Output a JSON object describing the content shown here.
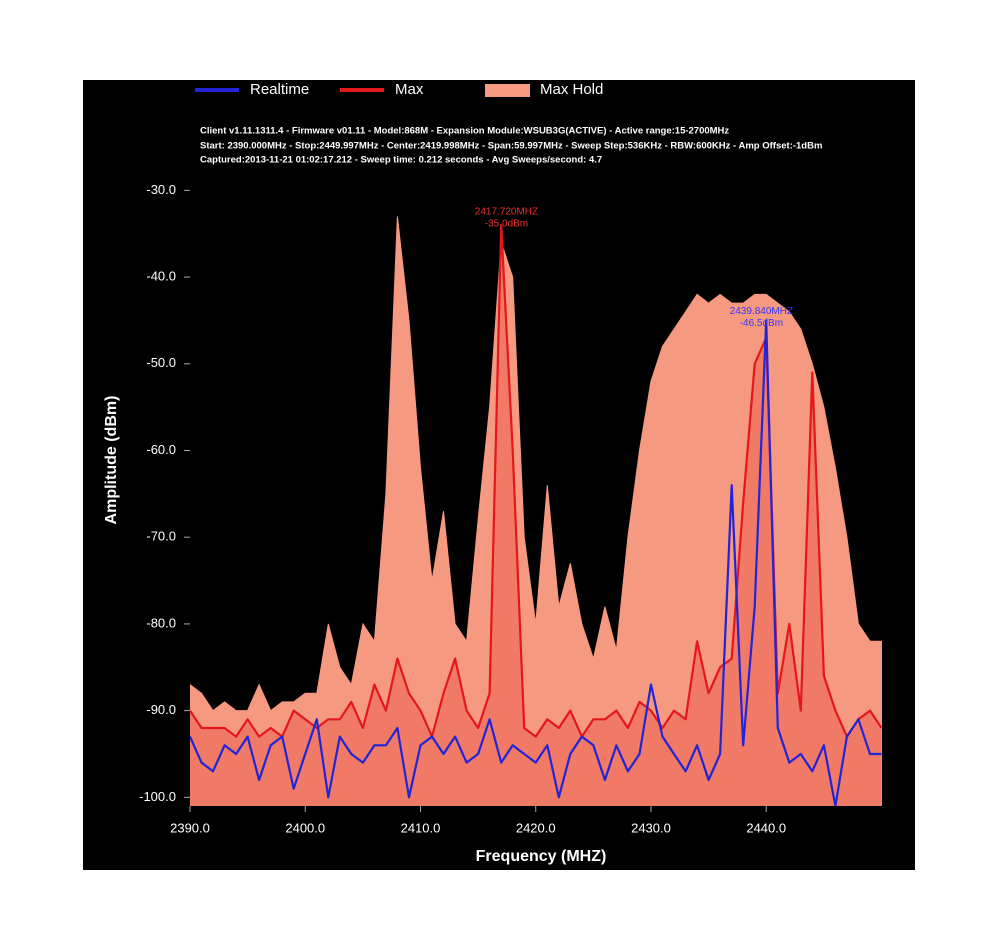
{
  "chart_data": {
    "type": "area",
    "info": [
      "Client v1.11.1311.4 - Firmware v01.11 - Model:868M - Expansion Module:WSUB3G(ACTIVE) - Active range:15-2700MHz",
      "Start: 2390.000MHz - Stop:2449.997MHz - Center:2419.998MHz - Span:59.997MHz - Sweep Step:536KHz - RBW:600KHz - Amp Offset:-1dBm",
      "Captured:2013-11-21 01:02:17.212 - Sweep time: 0.212 seconds - Avg Sweeps/second: 4.7"
    ],
    "x_label": "Frequency (MHZ)",
    "y_label": "Amplitude (dBm)",
    "xlim": [
      2390,
      2451
    ],
    "ylim": [
      -101,
      -22
    ],
    "xticks": [
      {
        "value": 2390,
        "label": "2390.0"
      },
      {
        "value": 2400,
        "label": "2400.0"
      },
      {
        "value": 2410,
        "label": "2410.0"
      },
      {
        "value": 2420,
        "label": "2420.0"
      },
      {
        "value": 2430,
        "label": "2430.0"
      },
      {
        "value": 2440,
        "label": "2440.0"
      }
    ],
    "yticks": [
      {
        "value": -100,
        "label": "-100.0"
      },
      {
        "value": -90,
        "label": "-90.0"
      },
      {
        "value": -80,
        "label": "-80.0"
      },
      {
        "value": -70,
        "label": "-70.0"
      },
      {
        "value": -60,
        "label": "-60.0"
      },
      {
        "value": -50,
        "label": "-50.0"
      },
      {
        "value": -40,
        "label": "-40.0"
      },
      {
        "value": -30,
        "label": "-30.0"
      }
    ],
    "grid": false,
    "x": [
      2390,
      2391,
      2392,
      2393,
      2394,
      2395,
      2396,
      2397,
      2398,
      2399,
      2400,
      2401,
      2402,
      2403,
      2404,
      2405,
      2406,
      2407,
      2408,
      2409,
      2410,
      2411,
      2412,
      2413,
      2414,
      2415,
      2416,
      2417,
      2418,
      2419,
      2420,
      2421,
      2422,
      2423,
      2424,
      2425,
      2426,
      2427,
      2428,
      2429,
      2430,
      2431,
      2432,
      2433,
      2434,
      2435,
      2436,
      2437,
      2438,
      2439,
      2440,
      2441,
      2442,
      2443,
      2444,
      2445,
      2446,
      2447,
      2448,
      2449,
      2450
    ],
    "series": [
      {
        "name": "Max Hold",
        "color": "#f59a80",
        "filled": true,
        "values": [
          -87,
          -88,
          -90,
          -89,
          -90,
          -90,
          -87,
          -90,
          -89,
          -89,
          -88,
          -88,
          -80,
          -85,
          -87,
          -80,
          -82,
          -65,
          -33,
          -45,
          -62,
          -75,
          -67,
          -80,
          -82,
          -68,
          -55,
          -36,
          -40,
          -70,
          -80,
          -64,
          -78,
          -73,
          -80,
          -84,
          -78,
          -83,
          -70,
          -60,
          -52,
          -48,
          -46,
          -44,
          -42,
          -43,
          -42,
          -43,
          -43,
          -42,
          -42,
          -43,
          -44,
          -46,
          -50,
          -55,
          -62,
          -70,
          -80,
          -82,
          -82
        ]
      },
      {
        "name": "Max",
        "color": "#e4171b",
        "filled": true,
        "values": [
          -90,
          -92,
          -92,
          -92,
          -93,
          -91,
          -93,
          -92,
          -93,
          -90,
          -91,
          -92,
          -91,
          -91,
          -89,
          -92,
          -87,
          -90,
          -84,
          -88,
          -90,
          -93,
          -88,
          -84,
          -90,
          -92,
          -88,
          -34,
          -60,
          -92,
          -93,
          -91,
          -92,
          -90,
          -93,
          -91,
          -91,
          -90,
          -92,
          -89,
          -90,
          -92,
          -90,
          -91,
          -82,
          -88,
          -85,
          -84,
          -66,
          -50,
          -47,
          -88,
          -80,
          -90,
          -51,
          -86,
          -90,
          -93,
          -91,
          -90,
          -92
        ]
      },
      {
        "name": "Realtime",
        "color": "#2323d8",
        "filled": false,
        "values": [
          -93,
          -96,
          -97,
          -94,
          -95,
          -93,
          -98,
          -94,
          -93,
          -99,
          -95,
          -91,
          -100,
          -93,
          -95,
          -96,
          -94,
          -94,
          -92,
          -100,
          -94,
          -93,
          -95,
          -93,
          -96,
          -95,
          -91,
          -96,
          -94,
          -95,
          -96,
          -94,
          -100,
          -95,
          -93,
          -94,
          -98,
          -94,
          -97,
          -95,
          -87,
          -93,
          -95,
          -97,
          -94,
          -98,
          -95,
          -64,
          -94,
          -78,
          -45,
          -92,
          -96,
          -95,
          -97,
          -94,
          -101,
          -93,
          -91,
          -95,
          -95
        ]
      }
    ],
    "legend_order": [
      2,
      1,
      0
    ],
    "annotations": [
      {
        "label": "2417.720MHZ",
        "sublabel": "-35.0dBm",
        "x": 2417.72,
        "y": -35.0,
        "color": "#e8302c"
      },
      {
        "label": "2439.840MHZ",
        "sublabel": "-46.5dBm",
        "x": 2439.84,
        "y": -46.5,
        "color": "#3434ff"
      }
    ]
  }
}
